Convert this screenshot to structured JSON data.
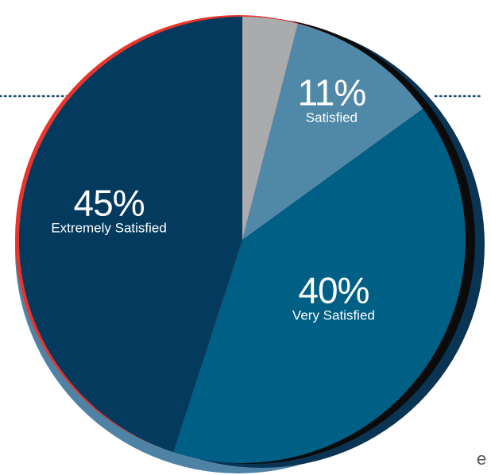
{
  "chart_data": {
    "type": "pie",
    "slices": [
      {
        "value": 4,
        "percent_label": "",
        "category": "",
        "color": "#a9abad"
      },
      {
        "value": 11,
        "percent_label": "11%",
        "category": "Satisfied",
        "color": "#5088a8"
      },
      {
        "value": 40,
        "percent_label": "40%",
        "category": "Very Satisfied",
        "color": "#005f85"
      },
      {
        "value": 45,
        "percent_label": "45%",
        "category": "Extremely Satisfied",
        "color": "#033a5e"
      }
    ],
    "start": "12 o'clock",
    "direction": "clockwise",
    "accent_colors": {
      "ring_red": "#e8352b",
      "ring_black": "#0b0b0c",
      "ring_navy": "#0a3454",
      "ring_light_blue": "#4f83a5",
      "dotted_line": "#1d4f6e"
    }
  },
  "edge_text": "e"
}
